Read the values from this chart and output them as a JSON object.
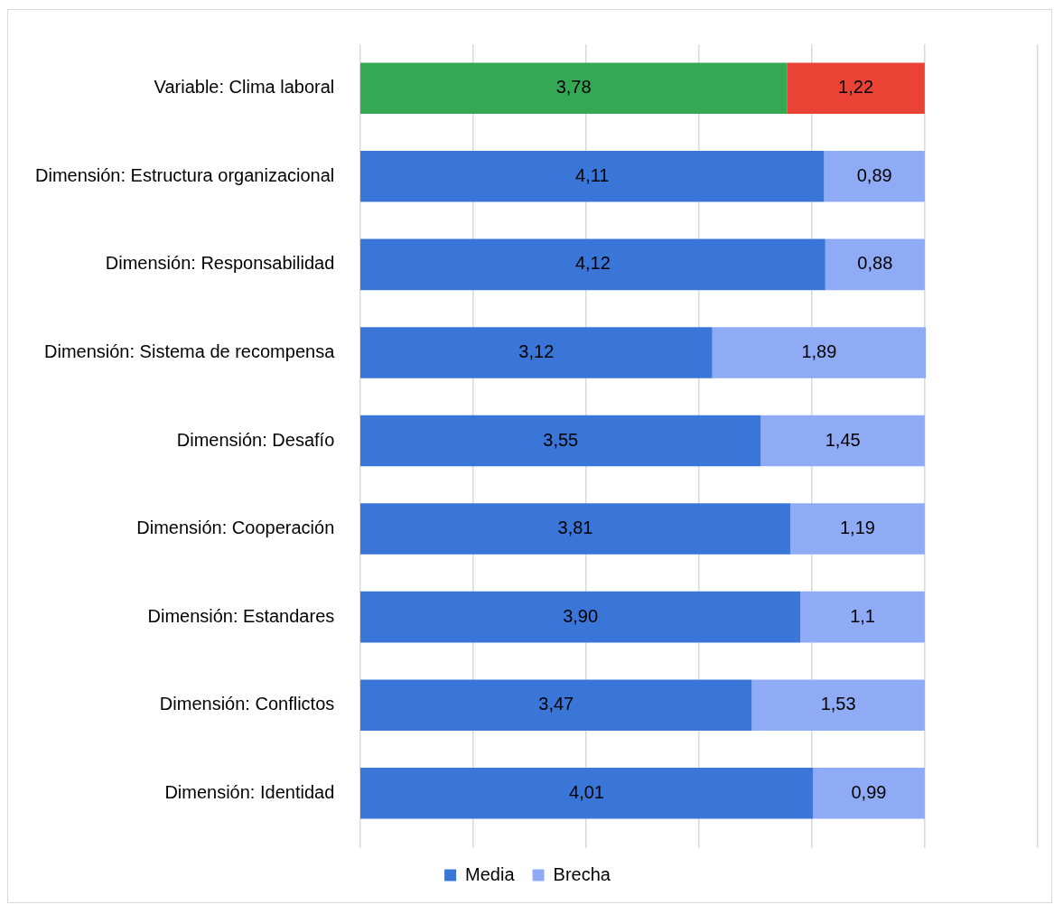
{
  "chart_data": {
    "type": "bar",
    "orientation": "horizontal",
    "stacked": true,
    "categories": [
      "Variable: Clima laboral",
      "Dimensión: Estructura organizacional",
      "Dimensión: Responsabilidad",
      "Dimensión: Sistema de recompensa",
      "Dimensión: Desafío",
      "Dimensión: Cooperación",
      "Dimensión: Estandares",
      "Dimensión: Conflictos",
      "Dimensión: Identidad"
    ],
    "series": [
      {
        "name": "Media",
        "color": "#3a76d8",
        "colors": [
          "#34a853",
          "#3a76d8",
          "#3a76d8",
          "#3a76d8",
          "#3a76d8",
          "#3a76d8",
          "#3a76d8",
          "#3a76d8",
          "#3a76d8"
        ],
        "values": [
          3.78,
          4.11,
          4.12,
          3.12,
          3.55,
          3.81,
          3.9,
          3.47,
          4.01
        ],
        "value_labels": [
          "3,78",
          "4,11",
          "4,12",
          "3,12",
          "3,55",
          "3,81",
          "3,90",
          "3,47",
          "4,01"
        ]
      },
      {
        "name": "Brecha",
        "color": "#8fabf5",
        "colors": [
          "#ea4335",
          "#8fabf5",
          "#8fabf5",
          "#8fabf5",
          "#8fabf5",
          "#8fabf5",
          "#8fabf5",
          "#8fabf5",
          "#8fabf5"
        ],
        "values": [
          1.22,
          0.89,
          0.88,
          1.89,
          1.45,
          1.19,
          1.1,
          1.53,
          0.99
        ],
        "value_labels": [
          "1,22",
          "0,89",
          "0,88",
          "1,89",
          "1,45",
          "1,19",
          "1,1",
          "1,53",
          "0,99"
        ]
      }
    ],
    "xlim": [
      0,
      6
    ],
    "xticks": [
      {
        "value": 0,
        "label": null
      },
      {
        "value": 1,
        "label": null
      },
      {
        "value": 2,
        "label": null
      },
      {
        "value": 3,
        "label": null
      },
      {
        "value": 4,
        "label": null
      },
      {
        "value": 5,
        "label": null
      },
      {
        "value": 6,
        "label": null
      }
    ],
    "grid": "x",
    "legend": "bottom",
    "tick_labels": "y"
  }
}
